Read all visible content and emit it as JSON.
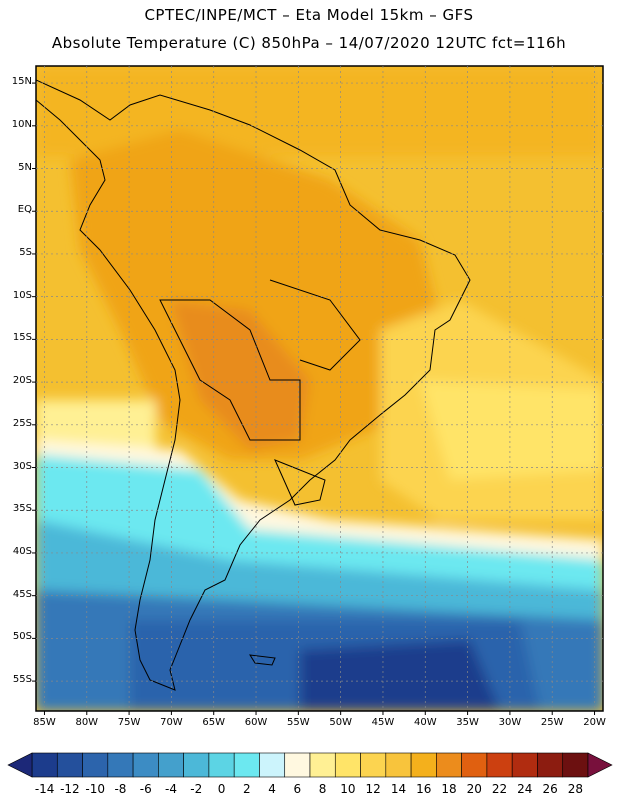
{
  "header": {
    "line1": "CPTEC/INPE/MCT –  Eta Model 15km – GFS",
    "line2": "Absolute Temperature (C) 850hPa – 14/07/2020 12UTC fct=116h"
  },
  "axes": {
    "lat_labels": [
      "15N",
      "10N",
      "5N",
      "EQ",
      "5S",
      "10S",
      "15S",
      "20S",
      "25S",
      "30S",
      "35S",
      "40S",
      "45S",
      "50S",
      "55S"
    ],
    "lon_labels": [
      "85W",
      "80W",
      "75W",
      "70W",
      "65W",
      "60W",
      "55W",
      "50W",
      "45W",
      "40W",
      "35W",
      "30W",
      "25W",
      "20W"
    ]
  },
  "colorbar": {
    "labels": [
      "-14",
      "-12",
      "-10",
      "-8",
      "-6",
      "-4",
      "-2",
      "0",
      "2",
      "4",
      "6",
      "8",
      "10",
      "12",
      "14",
      "16",
      "18",
      "20",
      "22",
      "24",
      "26",
      "28"
    ],
    "colors": [
      "#1c3c8c",
      "#24509c",
      "#2c64ac",
      "#3478b8",
      "#3c8cc4",
      "#44a0cc",
      "#4cb8d8",
      "#5cd4e4",
      "#6ce8f0",
      "#ccf4fc",
      "#fff8e0",
      "#fff094",
      "#ffe468",
      "#fcd450",
      "#f8c43c",
      "#f4b01c",
      "#ec8c1c",
      "#e06010",
      "#cc4010",
      "#b02c10",
      "#8c1c10",
      "#6c1010"
    ],
    "end_low_color": "#1c2878",
    "end_high_color": "#78103c"
  },
  "map": {
    "lon_range": [
      -86,
      -19
    ],
    "lat_range": [
      -58.5,
      17
    ],
    "grid": true
  }
}
